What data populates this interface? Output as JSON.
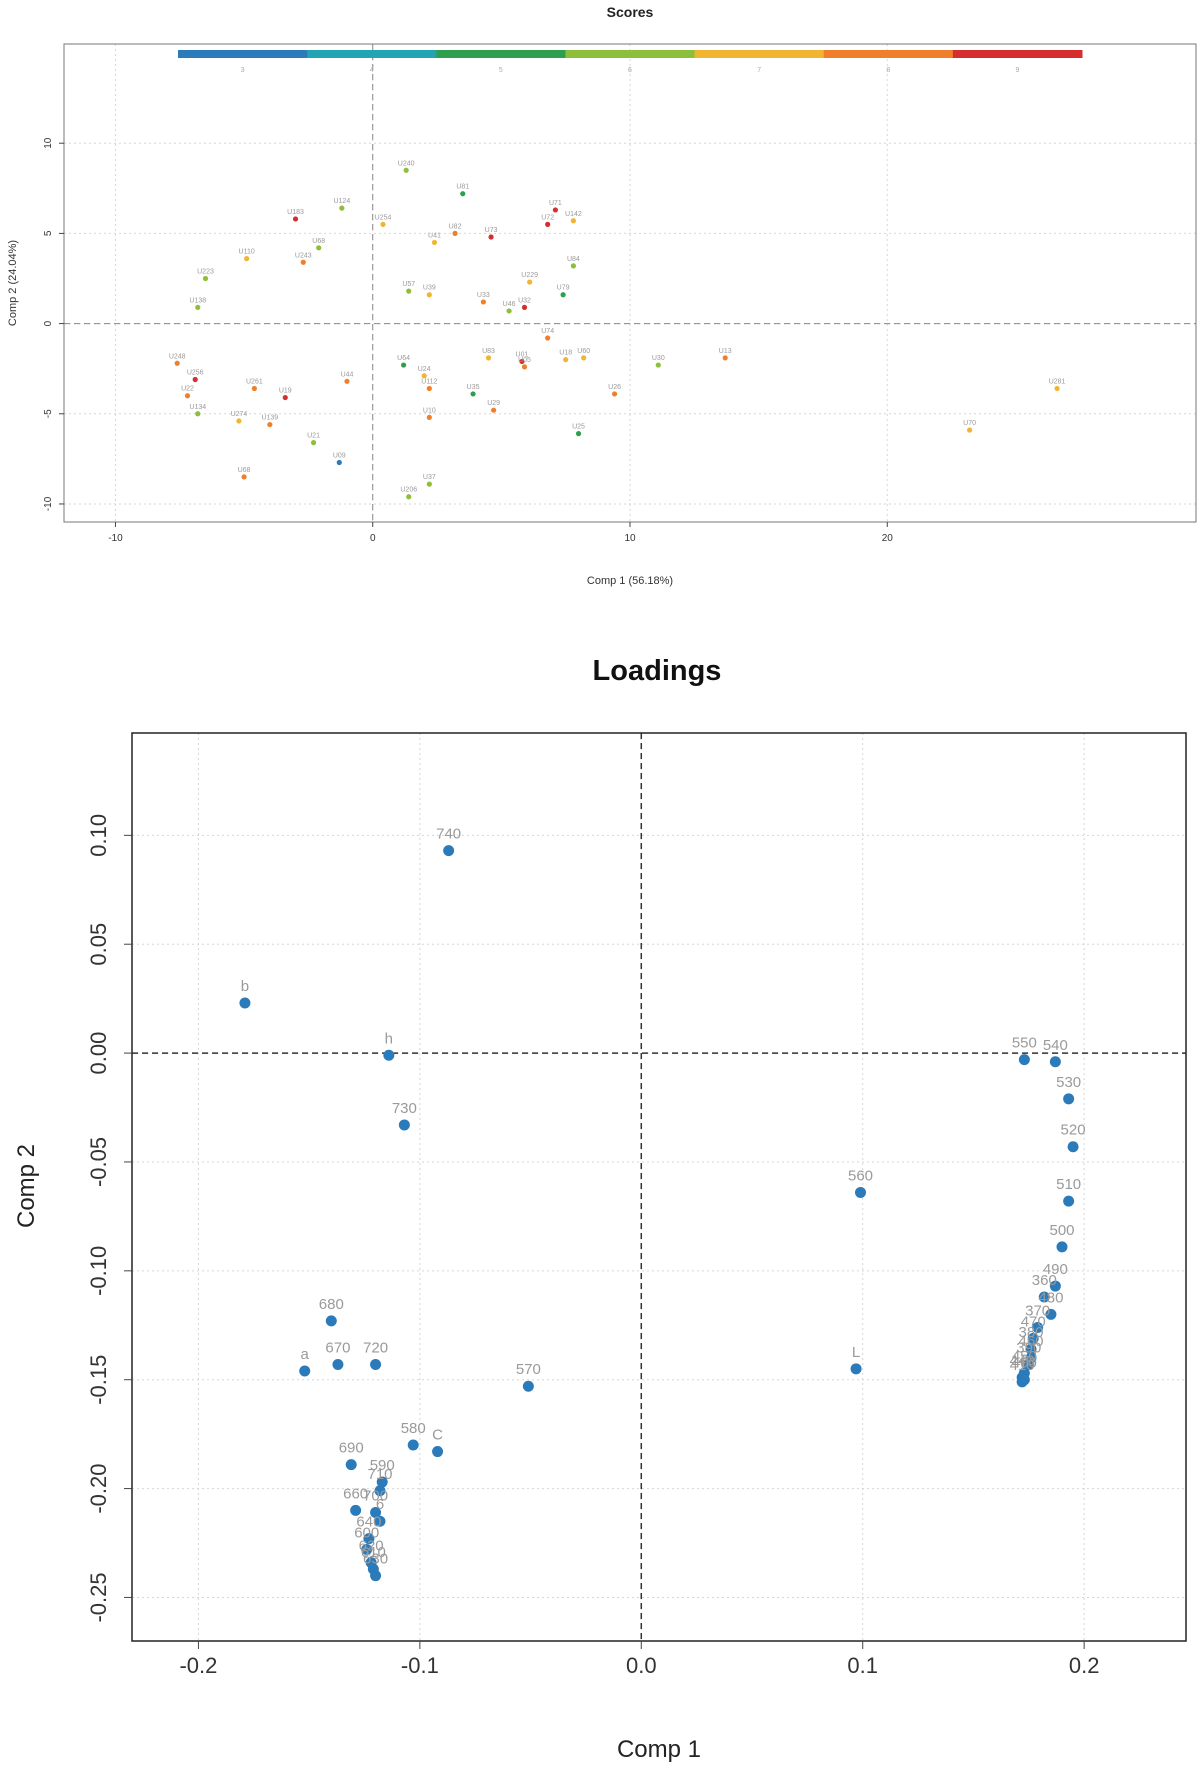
{
  "chart_data": [
    {
      "type": "scatter",
      "title": "Scores",
      "xlabel": "Comp 1 (56.18%)",
      "ylabel": "Comp 2 (24.04%)",
      "xlim": [
        -12,
        32
      ],
      "ylim": [
        -11,
        15.5
      ],
      "xticks": [
        "-10",
        "0",
        "10",
        "20"
      ],
      "xtick_values": [
        -10,
        0,
        10,
        20
      ],
      "yticks": [
        "-10",
        "-5",
        "0",
        "5",
        "10"
      ],
      "ytick_values": [
        -10,
        -5,
        0,
        5,
        10
      ],
      "grid": true,
      "reference_lines": {
        "x": 0,
        "y": 0
      },
      "color_scale": {
        "labels": [
          "3",
          "4",
          "5",
          "6",
          "7",
          "8",
          "9"
        ],
        "colors": [
          "#2b7bba",
          "#22a4b5",
          "#2e9e4f",
          "#8dbf3a",
          "#f2b531",
          "#f07f2c",
          "#d62e2e"
        ],
        "placement": "top"
      },
      "points": [
        {
          "label": "U240",
          "x": 1.3,
          "y": 8.5,
          "level": 6
        },
        {
          "label": "U81",
          "x": 3.5,
          "y": 7.2,
          "level": 5
        },
        {
          "label": "U124",
          "x": -1.2,
          "y": 6.4,
          "level": 6
        },
        {
          "label": "U71",
          "x": 7.1,
          "y": 6.3,
          "level": 9
        },
        {
          "label": "U142",
          "x": 7.8,
          "y": 5.7,
          "level": 7
        },
        {
          "label": "U72",
          "x": 6.8,
          "y": 5.5,
          "level": 9
        },
        {
          "label": "U183",
          "x": -3.0,
          "y": 5.8,
          "level": 9
        },
        {
          "label": "U254",
          "x": 0.4,
          "y": 5.5,
          "level": 7
        },
        {
          "label": "U82",
          "x": 3.2,
          "y": 5.0,
          "level": 8
        },
        {
          "label": "U73",
          "x": 4.6,
          "y": 4.8,
          "level": 9
        },
        {
          "label": "U41",
          "x": 2.4,
          "y": 4.5,
          "level": 7
        },
        {
          "label": "U84",
          "x": 7.8,
          "y": 3.2,
          "level": 6
        },
        {
          "label": "U68",
          "x": -2.1,
          "y": 4.2,
          "level": 6
        },
        {
          "label": "U110",
          "x": -4.9,
          "y": 3.6,
          "level": 7
        },
        {
          "label": "U243",
          "x": -2.7,
          "y": 3.4,
          "level": 8
        },
        {
          "label": "U223",
          "x": -6.5,
          "y": 2.5,
          "level": 6
        },
        {
          "label": "U229",
          "x": 6.1,
          "y": 2.3,
          "level": 7
        },
        {
          "label": "U79",
          "x": 7.4,
          "y": 1.6,
          "level": 5
        },
        {
          "label": "U57",
          "x": 1.4,
          "y": 1.8,
          "level": 6
        },
        {
          "label": "U39",
          "x": 2.2,
          "y": 1.6,
          "level": 7
        },
        {
          "label": "U33",
          "x": 4.3,
          "y": 1.2,
          "level": 8
        },
        {
          "label": "U32",
          "x": 5.9,
          "y": 0.9,
          "level": 9
        },
        {
          "label": "U46",
          "x": 5.3,
          "y": 0.7,
          "level": 6
        },
        {
          "label": "U138",
          "x": -6.8,
          "y": 0.9,
          "level": 6
        },
        {
          "label": "U74",
          "x": 6.8,
          "y": -0.8,
          "level": 8
        },
        {
          "label": "U248",
          "x": -7.6,
          "y": -2.2,
          "level": 8
        },
        {
          "label": "U256",
          "x": -6.9,
          "y": -3.1,
          "level": 9
        },
        {
          "label": "U22",
          "x": -7.2,
          "y": -4.0,
          "level": 8
        },
        {
          "label": "U134",
          "x": -6.8,
          "y": -5.0,
          "level": 6
        },
        {
          "label": "U274",
          "x": -5.2,
          "y": -5.4,
          "level": 7
        },
        {
          "label": "U261",
          "x": -4.6,
          "y": -3.6,
          "level": 8
        },
        {
          "label": "U139",
          "x": -4.0,
          "y": -5.6,
          "level": 8
        },
        {
          "label": "U19",
          "x": -3.4,
          "y": -4.1,
          "level": 9
        },
        {
          "label": "U44",
          "x": -1.0,
          "y": -3.2,
          "level": 8
        },
        {
          "label": "U21",
          "x": -2.3,
          "y": -6.6,
          "level": 6
        },
        {
          "label": "U09",
          "x": -1.3,
          "y": -7.7,
          "level": 3
        },
        {
          "label": "U68",
          "x": -5.0,
          "y": -8.5,
          "level": 8
        },
        {
          "label": "U64",
          "x": 1.2,
          "y": -2.3,
          "level": 5
        },
        {
          "label": "U112",
          "x": 2.2,
          "y": -3.6,
          "level": 8
        },
        {
          "label": "U10",
          "x": 2.2,
          "y": -5.2,
          "level": 8
        },
        {
          "label": "U24",
          "x": 2.0,
          "y": -2.9,
          "level": 7
        },
        {
          "label": "U35",
          "x": 3.9,
          "y": -3.9,
          "level": 5
        },
        {
          "label": "U83",
          "x": 4.5,
          "y": -1.9,
          "level": 7
        },
        {
          "label": "U29",
          "x": 4.7,
          "y": -4.8,
          "level": 8
        },
        {
          "label": "U01",
          "x": 5.8,
          "y": -2.1,
          "level": 9
        },
        {
          "label": "U05",
          "x": 5.9,
          "y": -2.4,
          "level": 8
        },
        {
          "label": "U18",
          "x": 7.5,
          "y": -2.0,
          "level": 7
        },
        {
          "label": "U60",
          "x": 8.2,
          "y": -1.9,
          "level": 7
        },
        {
          "label": "U26",
          "x": 9.4,
          "y": -3.9,
          "level": 8
        },
        {
          "label": "U25",
          "x": 8.0,
          "y": -6.1,
          "level": 5
        },
        {
          "label": "U30",
          "x": 11.1,
          "y": -2.3,
          "level": 6
        },
        {
          "label": "U13",
          "x": 13.7,
          "y": -1.9,
          "level": 8
        },
        {
          "label": "U37",
          "x": 2.2,
          "y": -8.9,
          "level": 6
        },
        {
          "label": "U206",
          "x": 1.4,
          "y": -9.6,
          "level": 6
        },
        {
          "label": "U70",
          "x": 23.2,
          "y": -5.9,
          "level": 7
        },
        {
          "label": "U281",
          "x": 26.6,
          "y": -3.6,
          "level": 7
        }
      ]
    },
    {
      "type": "scatter",
      "title": "Loadings",
      "xlabel": "Comp 1",
      "ylabel": "Comp 2",
      "xlim": [
        -0.23,
        0.246
      ],
      "ylim": [
        -0.27,
        0.147
      ],
      "xticks": [
        "-0.2",
        "-0.1",
        "0.0",
        "0.1",
        "0.2"
      ],
      "xtick_values": [
        -0.2,
        -0.1,
        0.0,
        0.1,
        0.2
      ],
      "yticks": [
        "0.10",
        "0.05",
        "0.00",
        "-0.05",
        "-0.10",
        "-0.15",
        "-0.20",
        "-0.25"
      ],
      "ytick_values": [
        0.1,
        0.05,
        0.0,
        -0.05,
        -0.1,
        -0.15,
        -0.2,
        -0.25
      ],
      "grid": true,
      "reference_lines": {
        "x": 0,
        "y": 0
      },
      "point_color": "#2b7bba",
      "points": [
        {
          "label": "740",
          "x": -0.087,
          "y": 0.093
        },
        {
          "label": "b",
          "x": -0.179,
          "y": 0.023
        },
        {
          "label": "h",
          "x": -0.114,
          "y": -0.001
        },
        {
          "label": "730",
          "x": -0.107,
          "y": -0.033
        },
        {
          "label": "680",
          "x": -0.14,
          "y": -0.123
        },
        {
          "label": "a",
          "x": -0.152,
          "y": -0.146
        },
        {
          "label": "670",
          "x": -0.137,
          "y": -0.143
        },
        {
          "label": "720",
          "x": -0.12,
          "y": -0.143
        },
        {
          "label": "570",
          "x": -0.051,
          "y": -0.153
        },
        {
          "label": "580",
          "x": -0.103,
          "y": -0.18
        },
        {
          "label": "C",
          "x": -0.092,
          "y": -0.183
        },
        {
          "label": "690",
          "x": -0.131,
          "y": -0.189
        },
        {
          "label": "590",
          "x": -0.117,
          "y": -0.197
        },
        {
          "label": "710",
          "x": -0.118,
          "y": -0.201
        },
        {
          "label": "660",
          "x": -0.129,
          "y": -0.21
        },
        {
          "label": "700",
          "x": -0.12,
          "y": -0.211
        },
        {
          "label": "6",
          "x": -0.118,
          "y": -0.215
        },
        {
          "label": "640",
          "x": -0.123,
          "y": -0.223
        },
        {
          "label": "600",
          "x": -0.124,
          "y": -0.228
        },
        {
          "label": "620",
          "x": -0.122,
          "y": -0.234
        },
        {
          "label": "610",
          "x": -0.121,
          "y": -0.237
        },
        {
          "label": "630",
          "x": -0.12,
          "y": -0.24
        },
        {
          "label": "560",
          "x": 0.099,
          "y": -0.064
        },
        {
          "label": "L",
          "x": 0.097,
          "y": -0.145
        },
        {
          "label": "550",
          "x": 0.173,
          "y": -0.003
        },
        {
          "label": "540",
          "x": 0.187,
          "y": -0.004
        },
        {
          "label": "530",
          "x": 0.193,
          "y": -0.021
        },
        {
          "label": "520",
          "x": 0.195,
          "y": -0.043
        },
        {
          "label": "510",
          "x": 0.193,
          "y": -0.068
        },
        {
          "label": "500",
          "x": 0.19,
          "y": -0.089
        },
        {
          "label": "490",
          "x": 0.187,
          "y": -0.107
        },
        {
          "label": "360",
          "x": 0.182,
          "y": -0.112
        },
        {
          "label": "480",
          "x": 0.185,
          "y": -0.12
        },
        {
          "label": "370",
          "x": 0.179,
          "y": -0.126
        },
        {
          "label": "470",
          "x": 0.177,
          "y": -0.131
        },
        {
          "label": "380",
          "x": 0.176,
          "y": -0.136
        },
        {
          "label": "460",
          "x": 0.176,
          "y": -0.14
        },
        {
          "label": "390",
          "x": 0.175,
          "y": -0.143
        },
        {
          "label": "450",
          "x": 0.173,
          "y": -0.147
        },
        {
          "label": "440",
          "x": 0.172,
          "y": -0.149
        },
        {
          "label": "400",
          "x": 0.173,
          "y": -0.15
        },
        {
          "label": "410",
          "x": 0.172,
          "y": -0.151
        }
      ]
    }
  ]
}
